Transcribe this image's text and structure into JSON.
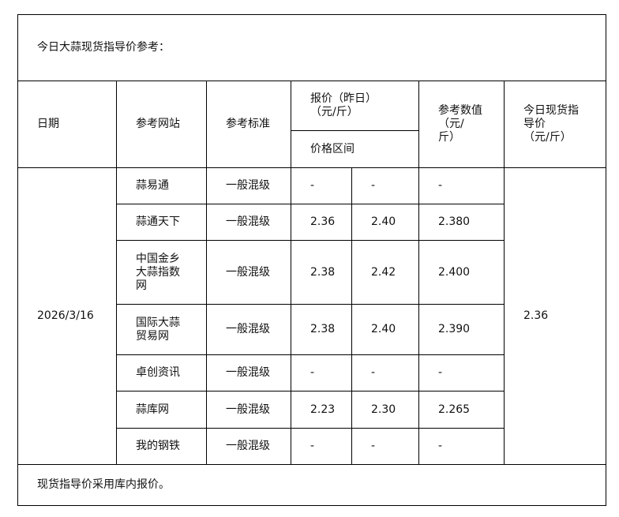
{
  "title": "今日大蒜现货指导价参考：",
  "headers": {
    "date": "日期",
    "site": "参考网站",
    "standard": "参考标准",
    "quote": "报价（昨日）\n（元/斤）",
    "range": "价格区间",
    "ref_value": "参考数值\n（元/\n斤）",
    "today_price": "今日现货指\n导价\n（元/斤）"
  },
  "date": "2026/3/16",
  "today_price": "2.36",
  "rows": [
    {
      "site": "蒜易通",
      "standard": "一般混级",
      "low": "-",
      "high": "-",
      "ref": "-"
    },
    {
      "site": "蒜通天下",
      "standard": "一般混级",
      "low": "2.36",
      "high": "2.40",
      "ref": "2.380"
    },
    {
      "site": "中国金乡\n大蒜指数\n网",
      "standard": "一般混级",
      "low": "2.38",
      "high": "2.42",
      "ref": "2.400"
    },
    {
      "site": "国际大蒜\n贸易网",
      "standard": "一般混级",
      "low": "2.38",
      "high": "2.40",
      "ref": "2.390"
    },
    {
      "site": "卓创资讯",
      "standard": "一般混级",
      "low": "-",
      "high": "-",
      "ref": "-"
    },
    {
      "site": "蒜库网",
      "standard": "一般混级",
      "low": "2.23",
      "high": "2.30",
      "ref": "2.265"
    },
    {
      "site": "我的钢铁",
      "standard": "一般混级",
      "low": "-",
      "high": "-",
      "ref": "-"
    }
  ],
  "footer": "现货指导价采用库内报价。"
}
